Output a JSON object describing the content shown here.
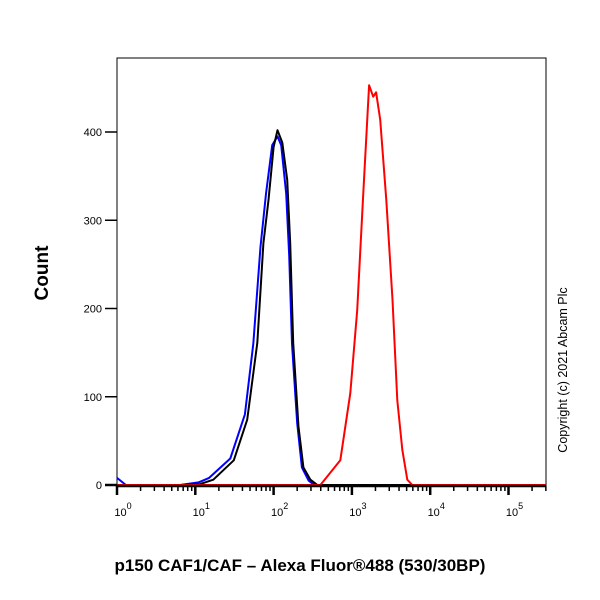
{
  "chart_data": {
    "type": "line",
    "title": "",
    "xlabel": "p150 CAF1/CAF – Alexa Fluor®488 (530/30BP)",
    "ylabel": "Count",
    "xscale": "log",
    "xlim": [
      1,
      300000
    ],
    "ylim": [
      0,
      484
    ],
    "x_ticks": [
      1,
      10,
      100,
      1000,
      10000,
      100000
    ],
    "x_tick_labels": [
      {
        "base": "10",
        "exp": "0"
      },
      {
        "base": "10",
        "exp": "1"
      },
      {
        "base": "10",
        "exp": "2"
      },
      {
        "base": "10",
        "exp": "3"
      },
      {
        "base": "10",
        "exp": "4"
      },
      {
        "base": "10",
        "exp": "5"
      }
    ],
    "y_ticks": [
      0,
      100,
      200,
      300,
      400
    ],
    "y_tick_labels": [
      "0",
      "100",
      "200",
      "300",
      "400"
    ],
    "grid": false,
    "series": [
      {
        "color": "#0000ff",
        "points": [
          [
            1,
            8
          ],
          [
            1.3,
            0
          ],
          [
            6.4,
            0
          ],
          [
            11,
            3
          ],
          [
            15,
            8
          ],
          [
            28,
            30
          ],
          [
            43,
            80
          ],
          [
            55,
            160
          ],
          [
            68,
            270
          ],
          [
            80,
            330
          ],
          [
            96,
            385
          ],
          [
            112,
            395
          ],
          [
            125,
            385
          ],
          [
            145,
            330
          ],
          [
            158,
            260
          ],
          [
            172,
            160
          ],
          [
            200,
            70
          ],
          [
            230,
            20
          ],
          [
            280,
            5
          ],
          [
            330,
            0
          ],
          [
            300000,
            0
          ]
        ]
      },
      {
        "color": "#000000",
        "points": [
          [
            6.4,
            0
          ],
          [
            11.5,
            1
          ],
          [
            17,
            6
          ],
          [
            31,
            28
          ],
          [
            46,
            74
          ],
          [
            62,
            161
          ],
          [
            74,
            274
          ],
          [
            86,
            323
          ],
          [
            100,
            383
          ],
          [
            112,
            402
          ],
          [
            129,
            388
          ],
          [
            149,
            346
          ],
          [
            163,
            274
          ],
          [
            178,
            161
          ],
          [
            208,
            66
          ],
          [
            240,
            20
          ],
          [
            295,
            6
          ],
          [
            363,
            0
          ],
          [
            300000,
            0
          ]
        ]
      },
      {
        "color": "#ff0000",
        "points": [
          [
            1,
            0
          ],
          [
            396,
            0
          ],
          [
            710,
            28
          ],
          [
            955,
            104
          ],
          [
            1170,
            198
          ],
          [
            1400,
            331
          ],
          [
            1660,
            453
          ],
          [
            1870,
            440
          ],
          [
            2040,
            445
          ],
          [
            2300,
            414
          ],
          [
            2750,
            323
          ],
          [
            3300,
            210
          ],
          [
            3800,
            96
          ],
          [
            4400,
            40
          ],
          [
            5100,
            6
          ],
          [
            5900,
            0
          ],
          [
            300000,
            0
          ]
        ]
      }
    ]
  },
  "copyright": "Copyright (c) 2021 Abcam Plc"
}
